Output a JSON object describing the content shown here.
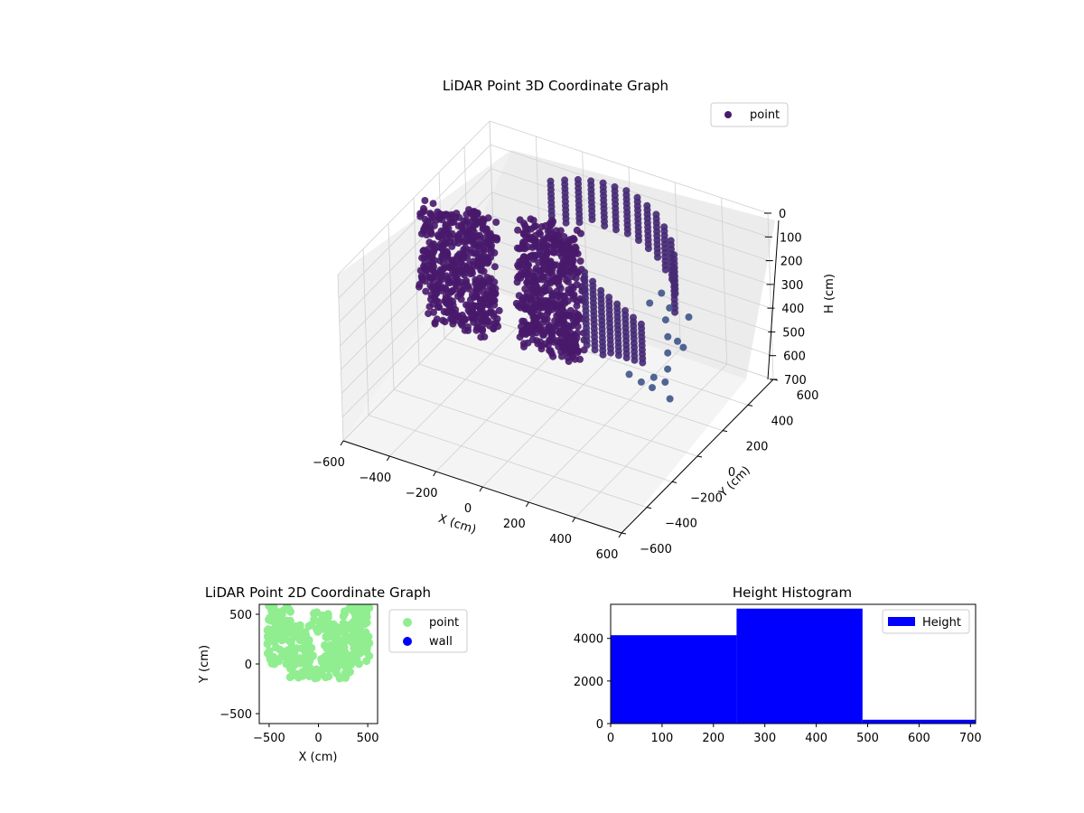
{
  "colors": {
    "point_dark": "#481a6c",
    "point_light": "#3e5b8c",
    "point2d": "#90ee90",
    "wall": "#0000ff",
    "hist": "#0000ff",
    "pane": "#f2f2f2",
    "grid": "#d0d0d0"
  },
  "chart_data": [
    {
      "type": "scatter3d",
      "title": "LiDAR Point 3D Coordinate Graph",
      "xlabel": "X (cm)",
      "ylabel": "Y (cm)",
      "zlabel": "H (cm)",
      "xlim": [
        -600,
        600
      ],
      "ylim": [
        -600,
        600
      ],
      "zlim": [
        0,
        700
      ],
      "z_inverted": true,
      "xticks": [
        "−600",
        "−400",
        "−200",
        "0",
        "200",
        "400",
        "600"
      ],
      "yticks": [
        "−600",
        "−400",
        "−200",
        "0",
        "200",
        "400",
        "600"
      ],
      "zticks": [
        "0",
        "100",
        "200",
        "300",
        "400",
        "500",
        "600",
        "700"
      ],
      "grid": true,
      "legend": {
        "position": "top-right",
        "entries": [
          "point"
        ]
      },
      "series": [
        {
          "name": "point",
          "blocks": [
            {
              "x": [
                -560,
                -260
              ],
              "y": [
                -60,
                60
              ],
              "h": [
                0,
                480
              ]
            },
            {
              "x": [
                -200,
                60
              ],
              "y": [
                40,
                140
              ],
              "h": [
                0,
                520
              ]
            }
          ],
          "wall_columns": [
            {
              "x": -240,
              "y": 420,
              "h": [
                40,
                220
              ]
            },
            {
              "x": -190,
              "y": 440,
              "h": [
                30,
                210
              ]
            },
            {
              "x": -140,
              "y": 455,
              "h": [
                20,
                200
              ]
            },
            {
              "x": -90,
              "y": 465,
              "h": [
                15,
                190
              ]
            },
            {
              "x": -40,
              "y": 470,
              "h": [
                10,
                190
              ]
            },
            {
              "x": 10,
              "y": 470,
              "h": [
                10,
                190
              ]
            },
            {
              "x": 60,
              "y": 470,
              "h": [
                10,
                200
              ]
            },
            {
              "x": 110,
              "y": 465,
              "h": [
                20,
                210
              ]
            },
            {
              "x": 160,
              "y": 450,
              "h": [
                30,
                220
              ]
            },
            {
              "x": 210,
              "y": 430,
              "h": [
                40,
                230
              ]
            },
            {
              "x": 260,
              "y": 400,
              "h": [
                60,
                240
              ]
            },
            {
              "x": 310,
              "y": 360,
              "h": [
                80,
                250
              ]
            },
            {
              "x": 350,
              "y": 310,
              "h": [
                100,
                270
              ]
            },
            {
              "x": 380,
              "y": 250,
              "h": [
                120,
                300
              ]
            },
            {
              "x": 100,
              "y": 60,
              "h": [
                120,
                440
              ]
            },
            {
              "x": 140,
              "y": 50,
              "h": [
                140,
                440
              ]
            },
            {
              "x": 180,
              "y": 40,
              "h": [
                160,
                430
              ]
            },
            {
              "x": 220,
              "y": 30,
              "h": [
                170,
                420
              ]
            },
            {
              "x": 260,
              "y": 20,
              "h": [
                180,
                410
              ]
            },
            {
              "x": 300,
              "y": 10,
              "h": [
                190,
                400
              ]
            },
            {
              "x": 340,
              "y": 0,
              "h": [
                200,
                390
              ]
            },
            {
              "x": 380,
              "y": -10,
              "h": [
                210,
                380
              ]
            }
          ],
          "scattered": [
            [
              390,
              160,
              280
            ],
            [
              420,
              120,
              320
            ],
            [
              440,
              80,
              360
            ],
            [
              460,
              40,
              400
            ],
            [
              470,
              0,
              430
            ],
            [
              430,
              -30,
              450
            ],
            [
              400,
              -60,
              420
            ],
            [
              360,
              -80,
              390
            ],
            [
              480,
              180,
              250
            ],
            [
              500,
              -20,
              480
            ],
            [
              520,
              60,
              300
            ],
            [
              380,
              210,
              260
            ],
            [
              330,
              240,
              230
            ],
            [
              300,
              200,
              260
            ],
            [
              450,
              140,
              340
            ],
            [
              410,
              20,
              440
            ]
          ]
        }
      ]
    },
    {
      "type": "scatter",
      "title": "LiDAR Point 2D Coordinate Graph",
      "xlabel": "X (cm)",
      "ylabel": "Y (cm)",
      "xlim": [
        -600,
        600
      ],
      "ylim": [
        -600,
        600
      ],
      "xticks": [
        "−500",
        "0",
        "500"
      ],
      "yticks": [
        "−500",
        "0",
        "500"
      ],
      "legend": {
        "position": "outside-right",
        "entries": [
          "point",
          "wall"
        ]
      },
      "series": [
        {
          "name": "point",
          "regions": [
            {
              "x": [
                -520,
                -270
              ],
              "y": [
                0,
                600
              ]
            },
            {
              "x": [
                250,
                520
              ],
              "y": [
                0,
                600
              ]
            },
            {
              "x": [
                -330,
                330
              ],
              "y": [
                -150,
                80
              ]
            },
            {
              "x": [
                -270,
                -50
              ],
              "y": [
                70,
                400
              ]
            },
            {
              "x": [
                60,
                270
              ],
              "y": [
                70,
                420
              ]
            },
            {
              "x": [
                -80,
                120
              ],
              "y": [
                300,
                520
              ]
            }
          ]
        },
        {
          "name": "wall",
          "regions": []
        }
      ]
    },
    {
      "type": "histogram",
      "title": "Height Histogram",
      "xlim": [
        0,
        710
      ],
      "ylim": [
        0,
        5600
      ],
      "xticks": [
        0,
        100,
        200,
        300,
        400,
        500,
        600,
        700
      ],
      "yticks": [
        0,
        2000,
        4000
      ],
      "legend": {
        "position": "top-right",
        "entries": [
          "Height"
        ]
      },
      "bins": [
        0,
        245,
        490,
        710
      ],
      "series": [
        {
          "name": "Height",
          "values": [
            4150,
            5400,
            180
          ]
        }
      ]
    }
  ]
}
